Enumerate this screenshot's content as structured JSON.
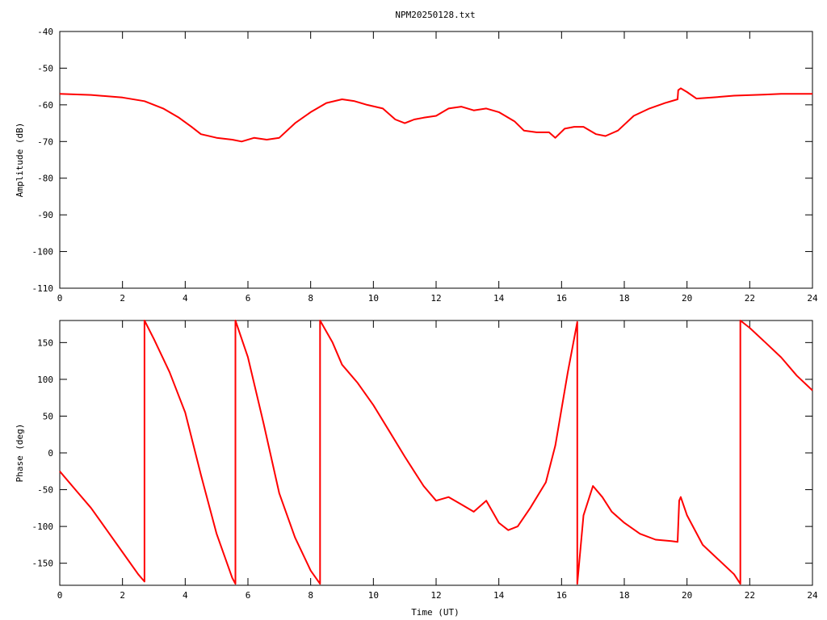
{
  "title": "NPM20250128.txt",
  "color": "#ff0000",
  "chart_data": [
    {
      "type": "line",
      "xlabel": "",
      "ylabel": "Amplitude (dB)",
      "xlim": [
        0,
        24
      ],
      "ylim": [
        -110,
        -40
      ],
      "xticks": [
        0,
        2,
        4,
        6,
        8,
        10,
        12,
        14,
        16,
        18,
        20,
        22,
        24
      ],
      "yticks": [
        -40,
        -50,
        -60,
        -70,
        -80,
        -90,
        -100,
        -110
      ],
      "ytick_labels": [
        "-40",
        "-50",
        "-60",
        "-70",
        "-80",
        "-90",
        "-100",
        "-110"
      ],
      "grid": false,
      "series": [
        {
          "x": [
            0,
            1,
            2,
            2.7,
            3.3,
            3.8,
            4.2,
            4.5,
            5,
            5.5,
            5.8,
            6.2,
            6.6,
            7,
            7.5,
            8,
            8.5,
            9,
            9.4,
            9.8,
            10.3,
            10.7,
            11,
            11.3,
            11.6,
            12,
            12.4,
            12.8,
            13.2,
            13.6,
            14,
            14.5,
            14.8,
            15.2,
            15.6,
            15.8,
            16.1,
            16.4,
            16.7,
            17.1,
            17.4,
            17.8,
            18.3,
            18.8,
            19.3,
            19.7,
            19.72,
            19.8,
            20.0,
            20.3,
            20.8,
            21.5,
            22.5,
            23.0,
            23.5,
            24
          ],
          "y": [
            -57,
            -57.3,
            -58,
            -59,
            -61,
            -63.5,
            -66,
            -68,
            -69,
            -69.5,
            -70,
            -69,
            -69.5,
            -69,
            -65,
            -62,
            -59.5,
            -58.5,
            -59,
            -60,
            -61,
            -64,
            -65,
            -64,
            -63.5,
            -63,
            -61,
            -60.5,
            -61.5,
            -61,
            -62,
            -64.5,
            -67,
            -67.5,
            -67.5,
            -69,
            -66.5,
            -66,
            -66,
            -68,
            -68.5,
            -67,
            -63,
            -61,
            -59.5,
            -58.5,
            -56,
            -55.5,
            -56.5,
            -58.3,
            -58,
            -57.5,
            -57.2,
            -57,
            -57,
            -57
          ]
        }
      ]
    },
    {
      "type": "line",
      "xlabel": "Time (UT)",
      "ylabel": "Phase (deg)",
      "xlim": [
        0,
        24
      ],
      "ylim": [
        -180,
        180
      ],
      "xticks": [
        0,
        2,
        4,
        6,
        8,
        10,
        12,
        14,
        16,
        18,
        20,
        22,
        24
      ],
      "yticks": [
        150,
        100,
        50,
        0,
        -50,
        -100,
        -150
      ],
      "ytick_labels": [
        "150",
        "100",
        "50",
        "0",
        "-50",
        "-100",
        "-150"
      ],
      "grid": false,
      "series": [
        {
          "x": [
            0,
            0.5,
            1,
            1.5,
            2,
            2.5,
            2.7,
            2.7,
            3,
            3.5,
            4,
            4.5,
            5,
            5.5,
            5.6,
            5.6,
            6,
            6.5,
            7,
            7.5,
            8,
            8.3,
            8.3,
            8.7,
            9,
            9.5,
            10,
            10.5,
            11,
            11.3,
            11.6,
            12,
            12.4,
            12.8,
            13.2,
            13.6,
            14,
            14.3,
            14.6,
            15,
            15.5,
            15.8,
            16.2,
            16.5,
            16.5,
            16.7,
            17,
            17.3,
            17.6,
            18,
            18.5,
            19,
            19.5,
            19.7,
            19.75,
            19.8,
            20,
            20.5,
            21,
            21.5,
            21.7,
            21.7,
            22,
            22.5,
            23,
            23.5,
            24
          ],
          "y": [
            -25,
            -50,
            -75,
            -105,
            -135,
            -165,
            -175,
            180,
            155,
            110,
            55,
            -30,
            -110,
            -170,
            -178,
            180,
            130,
            40,
            -55,
            -115,
            -160,
            -178,
            180,
            150,
            120,
            95,
            65,
            30,
            -5,
            -25,
            -45,
            -65,
            -60,
            -70,
            -80,
            -65,
            -95,
            -105,
            -100,
            -75,
            -40,
            10,
            110,
            178,
            -178,
            -85,
            -45,
            -60,
            -80,
            -95,
            -110,
            -118,
            -120,
            -121,
            -65,
            -60,
            -85,
            -125,
            -145,
            -165,
            -178,
            180,
            170,
            150,
            130,
            105,
            85
          ]
        }
      ]
    }
  ]
}
